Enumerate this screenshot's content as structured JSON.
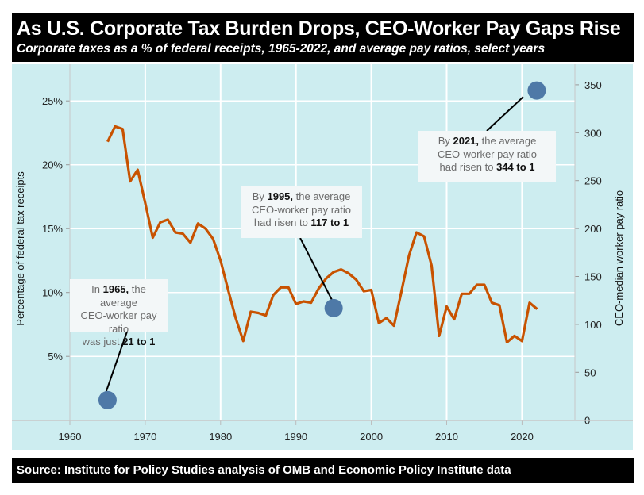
{
  "header": {
    "title": "As U.S. Corporate Tax Burden Drops, CEO-Worker Pay Gaps Rise",
    "subtitle": "Corporate taxes as a % of federal receipts, 1965-2022, and average pay ratios, select years"
  },
  "footer": {
    "source": "Source: Institute for Policy Studies analysis of OMB and Economic Policy Institute data"
  },
  "colors": {
    "line": "#c85200",
    "dots": "#4e79a7",
    "background": "#cdedf0",
    "title_bar": "#000000"
  },
  "chart_data": {
    "type": "line",
    "title": "As U.S. Corporate Tax Burden Drops, CEO-Worker Pay Gaps Rise",
    "subtitle": "Corporate taxes as a % of federal receipts, 1965-2022, and average pay ratios, select years",
    "xlabel": "",
    "ylabel": "Percentage of federal tax receipts",
    "y2label": "CEO-median worker pay ratio",
    "xlim": [
      1960,
      2027
    ],
    "ylim": [
      0,
      27.5
    ],
    "y2lim": [
      0,
      365
    ],
    "x_ticks": [
      "1960",
      "1970",
      "1980",
      "1990",
      "2000",
      "2010",
      "2020"
    ],
    "y_ticks": [
      "5%",
      "10%",
      "15%",
      "20%",
      "25%"
    ],
    "y2_ticks": [
      "0",
      "50",
      "100",
      "150",
      "200",
      "250",
      "300",
      "350"
    ],
    "grid": true,
    "series": [
      {
        "axis": "left",
        "type": "line",
        "x": [
          1965,
          1966,
          1967,
          1968,
          1969,
          1970,
          1971,
          1972,
          1973,
          1974,
          1975,
          1976,
          1977,
          1978,
          1979,
          1980,
          1981,
          1982,
          1983,
          1984,
          1985,
          1986,
          1987,
          1988,
          1989,
          1990,
          1991,
          1992,
          1993,
          1994,
          1995,
          1996,
          1997,
          1998,
          1999,
          2000,
          2001,
          2002,
          2003,
          2004,
          2005,
          2006,
          2007,
          2008,
          2009,
          2010,
          2011,
          2012,
          2013,
          2014,
          2015,
          2016,
          2017,
          2018,
          2019,
          2020,
          2021,
          2022
        ],
        "y": [
          21.8,
          23.0,
          22.8,
          18.7,
          19.6,
          17.0,
          14.3,
          15.5,
          15.7,
          14.7,
          14.6,
          13.9,
          15.4,
          15.0,
          14.2,
          12.5,
          10.2,
          8.0,
          6.2,
          8.5,
          8.4,
          8.2,
          9.8,
          10.4,
          10.4,
          9.1,
          9.3,
          9.2,
          10.3,
          11.1,
          11.6,
          11.8,
          11.5,
          11.0,
          10.1,
          10.2,
          7.6,
          8.0,
          7.4,
          10.1,
          12.9,
          14.7,
          14.4,
          12.1,
          6.6,
          8.9,
          7.9,
          9.9,
          9.9,
          10.6,
          10.6,
          9.2,
          9.0,
          6.1,
          6.6,
          6.2,
          9.2,
          8.7
        ]
      },
      {
        "axis": "right",
        "type": "scatter",
        "x": [
          1965,
          1995,
          2021
        ],
        "y": [
          21,
          117,
          344
        ]
      }
    ],
    "annotations": [
      {
        "pre": "In ",
        "year": "1965,",
        "mid": " the average",
        "line2": "CEO-worker pay ratio",
        "line3_pre": "was just ",
        "value": "21 to 1"
      },
      {
        "pre": "By ",
        "year": "1995,",
        "mid": " the average",
        "line2": "CEO-worker pay ratio",
        "line3_pre": "had risen to ",
        "value": "117 to 1"
      },
      {
        "pre": "By ",
        "year": "2021,",
        "mid": " the average",
        "line2": "CEO-worker pay ratio",
        "line3_pre": "had risen to ",
        "value": "344 to 1"
      }
    ]
  }
}
